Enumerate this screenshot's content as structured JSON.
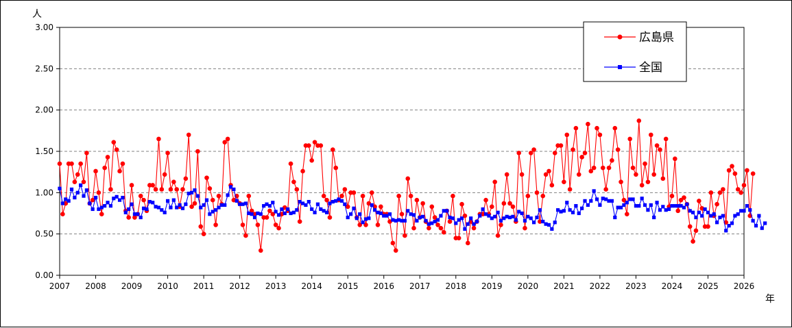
{
  "chart_data": {
    "type": "line",
    "ylabel": "人",
    "xlabel": "年",
    "ylim": [
      0,
      3.0
    ],
    "y_ticks": [
      "0.00",
      "0.50",
      "1.00",
      "1.50",
      "2.00",
      "2.50",
      "3.00"
    ],
    "x_ticks": [
      "2007",
      "2008",
      "2009",
      "2010",
      "2011",
      "2012",
      "2013",
      "2014",
      "2015",
      "2016",
      "2017",
      "2018",
      "2019",
      "2020",
      "2021",
      "2022",
      "2023",
      "2024",
      "2025",
      "2026"
    ],
    "x_start": "2007-01",
    "x_end": "2026-03",
    "grid": "horizontal dashed",
    "legend_position": "top-right",
    "series": [
      {
        "name": "広島県",
        "color": "#ff0000",
        "marker": "circle",
        "values": [
          1.35,
          0.74,
          0.87,
          1.35,
          1.35,
          1.13,
          1.22,
          1.35,
          1.13,
          1.48,
          0.87,
          0.91,
          1.26,
          1.0,
          0.74,
          1.3,
          1.43,
          1.04,
          1.61,
          1.52,
          1.26,
          1.35,
          0.78,
          0.7,
          1.09,
          0.7,
          0.74,
          0.96,
          0.91,
          0.78,
          1.09,
          1.09,
          1.04,
          1.65,
          1.04,
          1.22,
          1.48,
          1.04,
          1.13,
          1.04,
          0.83,
          1.04,
          1.17,
          1.7,
          0.83,
          0.87,
          1.5,
          0.59,
          0.5,
          1.18,
          1.05,
          0.91,
          0.61,
          0.96,
          0.86,
          1.61,
          1.65,
          1.09,
          0.91,
          0.96,
          0.87,
          0.61,
          0.48,
          0.96,
          0.78,
          0.74,
          0.61,
          0.3,
          0.7,
          0.7,
          0.78,
          0.74,
          0.61,
          0.57,
          0.74,
          0.82,
          0.78,
          1.35,
          1.13,
          1.04,
          0.65,
          1.26,
          1.57,
          1.57,
          1.39,
          1.61,
          1.57,
          1.57,
          0.96,
          0.91,
          0.7,
          1.52,
          1.3,
          0.91,
          0.96,
          1.04,
          0.83,
          1.0,
          1.0,
          0.7,
          0.61,
          0.96,
          0.61,
          0.87,
          1.0,
          0.83,
          0.61,
          0.83,
          0.74,
          0.74,
          0.65,
          0.39,
          0.3,
          0.96,
          0.74,
          0.48,
          1.17,
          0.96,
          0.57,
          0.91,
          0.7,
          0.87,
          0.65,
          0.57,
          0.83,
          0.7,
          0.61,
          0.57,
          0.52,
          0.78,
          0.65,
          0.96,
          0.45,
          0.45,
          0.86,
          0.72,
          0.39,
          0.65,
          0.57,
          0.65,
          0.74,
          0.74,
          0.91,
          0.74,
          0.83,
          1.13,
          0.48,
          0.61,
          0.87,
          1.22,
          0.87,
          0.83,
          0.65,
          1.48,
          1.22,
          0.57,
          0.96,
          1.48,
          1.52,
          1.0,
          0.65,
          0.96,
          1.22,
          1.26,
          1.09,
          1.48,
          1.57,
          1.57,
          1.13,
          1.7,
          1.04,
          1.52,
          1.78,
          1.22,
          1.43,
          1.48,
          1.83,
          1.26,
          1.3,
          1.78,
          1.7,
          1.3,
          1.04,
          1.3,
          1.39,
          1.78,
          1.52,
          1.13,
          0.91,
          0.74,
          1.65,
          1.3,
          1.22,
          1.87,
          1.09,
          1.35,
          1.13,
          1.7,
          1.22,
          1.57,
          1.52,
          1.17,
          1.65,
          0.83,
          0.96,
          1.41,
          0.78,
          0.91,
          0.94,
          0.86,
          0.59,
          0.41,
          0.54,
          0.9,
          0.81,
          0.59,
          0.59,
          1.0,
          0.72,
          0.86,
          1.0,
          1.04,
          0.64,
          1.27,
          1.32,
          1.23,
          1.04,
          1.0,
          1.09,
          1.27,
          0.72,
          1.23
        ]
      },
      {
        "name": "全国",
        "color": "#0000ff",
        "marker": "square",
        "values": [
          1.05,
          0.87,
          0.92,
          0.9,
          1.04,
          0.94,
          1.0,
          1.09,
          0.96,
          1.03,
          0.87,
          0.8,
          0.94,
          0.8,
          0.82,
          0.84,
          0.88,
          0.84,
          0.93,
          0.95,
          0.91,
          0.94,
          0.76,
          0.8,
          0.86,
          0.74,
          0.74,
          0.7,
          0.81,
          0.8,
          0.89,
          0.88,
          0.83,
          0.82,
          0.79,
          0.76,
          0.9,
          0.82,
          0.91,
          0.82,
          0.85,
          0.81,
          0.86,
          0.99,
          1.0,
          1.03,
          0.96,
          0.82,
          0.85,
          0.91,
          0.74,
          0.77,
          0.79,
          0.82,
          0.85,
          0.85,
          0.97,
          1.07,
          1.04,
          0.9,
          0.86,
          0.86,
          0.87,
          0.75,
          0.74,
          0.7,
          0.75,
          0.74,
          0.84,
          0.86,
          0.84,
          0.88,
          0.77,
          0.73,
          0.8,
          0.75,
          0.8,
          0.75,
          0.76,
          0.79,
          0.89,
          0.87,
          0.85,
          0.89,
          0.8,
          0.76,
          0.86,
          0.8,
          0.78,
          0.76,
          0.87,
          0.89,
          0.9,
          0.92,
          0.9,
          0.86,
          0.7,
          0.74,
          0.81,
          0.69,
          0.74,
          0.64,
          0.68,
          0.69,
          0.85,
          0.79,
          0.76,
          0.75,
          0.72,
          0.72,
          0.74,
          0.67,
          0.66,
          0.67,
          0.66,
          0.66,
          0.78,
          0.74,
          0.73,
          0.66,
          0.7,
          0.71,
          0.66,
          0.62,
          0.63,
          0.65,
          0.67,
          0.72,
          0.78,
          0.78,
          0.7,
          0.69,
          0.63,
          0.67,
          0.69,
          0.56,
          0.62,
          0.69,
          0.62,
          0.65,
          0.72,
          0.8,
          0.74,
          0.72,
          0.69,
          0.71,
          0.76,
          0.66,
          0.69,
          0.71,
          0.7,
          0.71,
          0.67,
          0.77,
          0.75,
          0.66,
          0.71,
          0.69,
          0.64,
          0.7,
          0.79,
          0.65,
          0.62,
          0.61,
          0.56,
          0.64,
          0.79,
          0.77,
          0.78,
          0.88,
          0.79,
          0.76,
          0.84,
          0.75,
          0.81,
          0.9,
          0.85,
          0.9,
          1.02,
          0.92,
          0.85,
          0.93,
          0.92,
          0.9,
          0.9,
          0.7,
          0.82,
          0.82,
          0.85,
          0.88,
          0.92,
          0.92,
          0.84,
          0.84,
          0.93,
          0.85,
          0.79,
          0.85,
          0.7,
          0.88,
          0.79,
          0.83,
          0.79,
          0.8,
          0.84,
          0.84,
          0.84,
          0.84,
          0.82,
          0.86,
          0.78,
          0.76,
          0.7,
          0.76,
          0.72,
          0.8,
          0.76,
          0.72,
          0.74,
          0.64,
          0.7,
          0.72,
          0.54,
          0.6,
          0.63,
          0.72,
          0.74,
          0.78,
          0.78,
          0.84,
          0.79,
          0.66,
          0.6,
          0.72,
          0.57,
          0.63
        ]
      }
    ]
  }
}
